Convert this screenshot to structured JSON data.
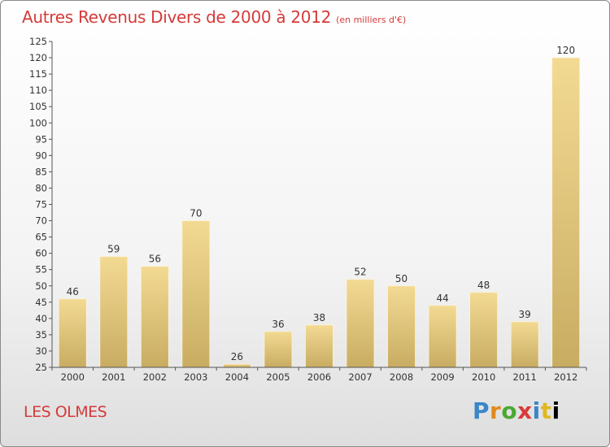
{
  "chart_data": {
    "type": "bar",
    "title": "Autres Revenus Divers de 2000 à 2012",
    "subtitle": "(en milliers d'€)",
    "categories": [
      "2000",
      "2001",
      "2002",
      "2003",
      "2004",
      "2005",
      "2006",
      "2007",
      "2008",
      "2009",
      "2010",
      "2011",
      "2012"
    ],
    "values": [
      46,
      59,
      56,
      70,
      26,
      36,
      38,
      52,
      50,
      44,
      48,
      39,
      120
    ],
    "ylim": [
      25,
      125
    ],
    "ytick_step": 5,
    "grid": false,
    "bar_color_top": "#f3da93",
    "bar_color_bottom": "#c8ac62"
  },
  "footer": {
    "commune": "LES OLMES",
    "logo_text": "Proxiti"
  }
}
